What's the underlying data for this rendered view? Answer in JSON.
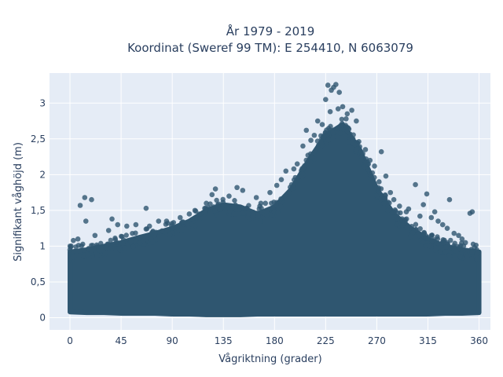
{
  "chart_data": {
    "type": "scatter",
    "title": "År 1979 - 2019",
    "subtitle": "Koordinat (Sweref 99 TM): E 254410, N 6063079",
    "xlabel": "Vågriktning (grader)",
    "ylabel": "Signifikant våghöjd (m)",
    "xlim": [
      -18,
      370
    ],
    "ylim": [
      -0.17,
      3.42
    ],
    "x_ticks": [
      0,
      45,
      90,
      135,
      180,
      225,
      270,
      315,
      360
    ],
    "x_tick_labels": [
      "0",
      "45",
      "90",
      "135",
      "180",
      "225",
      "270",
      "315",
      "360"
    ],
    "y_ticks": [
      0,
      0.5,
      1,
      1.5,
      2,
      2.5,
      3
    ],
    "y_tick_labels": [
      "0",
      "0,5",
      "1",
      "1,5",
      "2",
      "2,5",
      "3"
    ],
    "grid": true,
    "colors": {
      "marker": "#2f5670",
      "plot_bg": "#e5ecf6",
      "grid": "#ffffff",
      "text": "#2a3f5f"
    },
    "series": [
      {
        "envelope": {
          "x": [
            0,
            15,
            30,
            45,
            60,
            75,
            90,
            105,
            120,
            135,
            150,
            165,
            180,
            195,
            210,
            225,
            240,
            255,
            270,
            285,
            300,
            315,
            330,
            345,
            360
          ],
          "lower": [
            0.08,
            0.07,
            0.07,
            0.06,
            0.06,
            0.06,
            0.05,
            0.05,
            0.04,
            0.04,
            0.04,
            0.05,
            0.05,
            0.05,
            0.05,
            0.05,
            0.05,
            0.05,
            0.05,
            0.05,
            0.05,
            0.05,
            0.06,
            0.06,
            0.07
          ],
          "upper": [
            0.92,
            0.95,
            1.0,
            1.05,
            1.12,
            1.18,
            1.25,
            1.35,
            1.5,
            1.58,
            1.55,
            1.45,
            1.55,
            1.8,
            2.2,
            2.55,
            2.7,
            2.35,
            1.8,
            1.45,
            1.25,
            1.1,
            1.0,
            0.95,
            0.92
          ]
        },
        "outliers": [
          {
            "x": 227,
            "y": 3.25
          },
          {
            "x": 232,
            "y": 3.22
          },
          {
            "x": 234,
            "y": 3.26
          },
          {
            "x": 230,
            "y": 3.18
          },
          {
            "x": 237,
            "y": 3.15
          },
          {
            "x": 225,
            "y": 3.05
          },
          {
            "x": 240,
            "y": 2.95
          },
          {
            "x": 244,
            "y": 2.85
          },
          {
            "x": 248,
            "y": 2.9
          },
          {
            "x": 252,
            "y": 2.75
          },
          {
            "x": 218,
            "y": 2.75
          },
          {
            "x": 208,
            "y": 2.62
          },
          {
            "x": 215,
            "y": 2.55
          },
          {
            "x": 205,
            "y": 2.4
          },
          {
            "x": 200,
            "y": 2.15
          },
          {
            "x": 197,
            "y": 2.08
          },
          {
            "x": 190,
            "y": 2.05
          },
          {
            "x": 186,
            "y": 1.93
          },
          {
            "x": 182,
            "y": 1.85
          },
          {
            "x": 176,
            "y": 1.75
          },
          {
            "x": 172,
            "y": 1.6
          },
          {
            "x": 168,
            "y": 1.6
          },
          {
            "x": 164,
            "y": 1.68
          },
          {
            "x": 147,
            "y": 1.82
          },
          {
            "x": 152,
            "y": 1.78
          },
          {
            "x": 140,
            "y": 1.7
          },
          {
            "x": 128,
            "y": 1.8
          },
          {
            "x": 125,
            "y": 1.72
          },
          {
            "x": 120,
            "y": 1.6
          },
          {
            "x": 110,
            "y": 1.5
          },
          {
            "x": 105,
            "y": 1.45
          },
          {
            "x": 97,
            "y": 1.4
          },
          {
            "x": 85,
            "y": 1.35
          },
          {
            "x": 78,
            "y": 1.35
          },
          {
            "x": 70,
            "y": 1.28
          },
          {
            "x": 67,
            "y": 1.53
          },
          {
            "x": 58,
            "y": 1.3
          },
          {
            "x": 50,
            "y": 1.28
          },
          {
            "x": 42,
            "y": 1.3
          },
          {
            "x": 37,
            "y": 1.38
          },
          {
            "x": 34,
            "y": 1.22
          },
          {
            "x": 22,
            "y": 1.15
          },
          {
            "x": 19,
            "y": 1.65
          },
          {
            "x": 14,
            "y": 1.35
          },
          {
            "x": 13,
            "y": 1.68
          },
          {
            "x": 9,
            "y": 1.57
          },
          {
            "x": 7,
            "y": 1.1
          },
          {
            "x": 3,
            "y": 1.08
          },
          {
            "x": 0,
            "y": 0.95
          },
          {
            "x": 260,
            "y": 2.35
          },
          {
            "x": 264,
            "y": 2.2
          },
          {
            "x": 268,
            "y": 2.12
          },
          {
            "x": 272,
            "y": 1.9
          },
          {
            "x": 274,
            "y": 2.32
          },
          {
            "x": 278,
            "y": 1.98
          },
          {
            "x": 282,
            "y": 1.75
          },
          {
            "x": 285,
            "y": 1.65
          },
          {
            "x": 290,
            "y": 1.56
          },
          {
            "x": 296,
            "y": 1.48
          },
          {
            "x": 298,
            "y": 1.52
          },
          {
            "x": 295,
            "y": 1.35
          },
          {
            "x": 304,
            "y": 1.86
          },
          {
            "x": 308,
            "y": 1.42
          },
          {
            "x": 311,
            "y": 1.58
          },
          {
            "x": 314,
            "y": 1.73
          },
          {
            "x": 318,
            "y": 1.4
          },
          {
            "x": 321,
            "y": 1.48
          },
          {
            "x": 324,
            "y": 1.35
          },
          {
            "x": 328,
            "y": 1.3
          },
          {
            "x": 332,
            "y": 1.25
          },
          {
            "x": 334,
            "y": 1.65
          },
          {
            "x": 338,
            "y": 1.18
          },
          {
            "x": 342,
            "y": 1.15
          },
          {
            "x": 345,
            "y": 1.1
          },
          {
            "x": 348,
            "y": 1.05
          },
          {
            "x": 352,
            "y": 1.46
          },
          {
            "x": 354,
            "y": 1.48
          },
          {
            "x": 356,
            "y": 0.98
          },
          {
            "x": 358,
            "y": 0.95
          },
          {
            "x": 243,
            "y": 2.78
          },
          {
            "x": 236,
            "y": 2.92
          },
          {
            "x": 229,
            "y": 2.88
          },
          {
            "x": 222,
            "y": 2.7
          },
          {
            "x": 212,
            "y": 2.48
          }
        ]
      }
    ]
  }
}
